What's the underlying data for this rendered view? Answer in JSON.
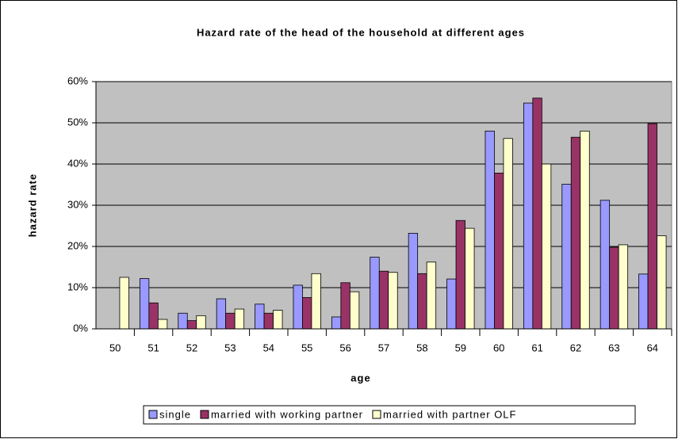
{
  "chart_data": {
    "type": "bar",
    "title": "Hazard rate of the head of the household at different ages",
    "x_label": "age",
    "y_label": "hazard rate",
    "categories": [
      "50",
      "51",
      "52",
      "53",
      "54",
      "55",
      "56",
      "57",
      "58",
      "59",
      "60",
      "61",
      "62",
      "63",
      "64"
    ],
    "series": [
      {
        "name": "single",
        "color": "#9999ff",
        "values": [
          0,
          12.2,
          3.8,
          7.3,
          6.0,
          10.6,
          2.9,
          17.4,
          23.2,
          12.1,
          48.0,
          54.8,
          35.1,
          31.2,
          13.3
        ]
      },
      {
        "name": "married with working partner",
        "color": "#993366",
        "values": [
          0,
          6.3,
          2.0,
          3.8,
          3.8,
          7.6,
          11.2,
          14.0,
          13.4,
          26.3,
          37.8,
          56.0,
          46.5,
          19.8,
          49.8
        ]
      },
      {
        "name": "married with partner OLF",
        "color": "#ffffcc",
        "values": [
          12.5,
          2.3,
          3.2,
          4.8,
          4.5,
          13.4,
          9.0,
          13.7,
          16.2,
          24.4,
          46.2,
          40.0,
          48.0,
          20.4,
          22.6
        ]
      }
    ],
    "ylim": [
      0,
      60
    ],
    "yticks": [
      {
        "value": 0,
        "label": "0%"
      },
      {
        "value": 10,
        "label": "10%"
      },
      {
        "value": 20,
        "label": "20%"
      },
      {
        "value": 30,
        "label": "30%"
      },
      {
        "value": 40,
        "label": "40%"
      },
      {
        "value": 50,
        "label": "50%"
      },
      {
        "value": 60,
        "label": "60%"
      }
    ],
    "grid": true,
    "plot_background": "#c0c0c0",
    "legend": "bottom"
  }
}
